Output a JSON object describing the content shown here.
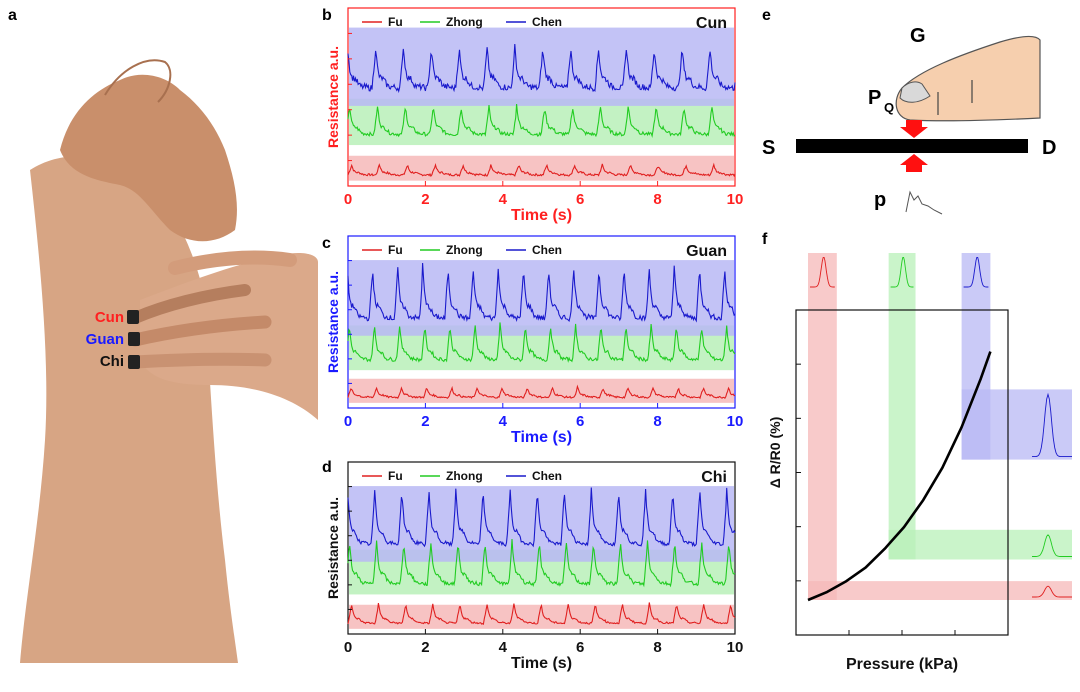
{
  "panel_letters": {
    "a": "a",
    "b": "b",
    "c": "c",
    "d": "d",
    "e": "e",
    "f": "f"
  },
  "panel_a": {
    "labels": [
      {
        "text": "Cun",
        "color": "#ff2020"
      },
      {
        "text": "Guan",
        "color": "#1a1aff"
      },
      {
        "text": "Chi",
        "color": "#111111"
      }
    ]
  },
  "colors": {
    "fu": "#e02020",
    "zhong": "#22cc22",
    "chen": "#1a1acc",
    "fu_band": "#f6b8b8",
    "zhong_band": "#b8f0b8",
    "chen_band": "#b8b8f4",
    "cun_axis": "#ff2020",
    "guan_axis": "#1a1aff",
    "chi_axis": "#111111"
  },
  "chart_data": [
    {
      "panel": "b",
      "type": "line",
      "title": "Cun",
      "xlabel": "Time (s)",
      "ylabel": "Resistance a.u.",
      "xlim": [
        0,
        10
      ],
      "x_ticks": [
        "0",
        "2",
        "4",
        "6",
        "8",
        "10"
      ],
      "axis_color": "#ff2020",
      "legend": [
        "Fu",
        "Zhong",
        "Chen"
      ],
      "legend_position": "top",
      "series": [
        {
          "name": "Fu",
          "period_s": 0.72,
          "baseline": 0.1,
          "amplitude": 0.05,
          "noise": 0.012
        },
        {
          "name": "Zhong",
          "period_s": 0.72,
          "baseline": 0.36,
          "amplitude": 0.14,
          "noise": 0.02
        },
        {
          "name": "Chen",
          "period_s": 0.72,
          "baseline": 0.67,
          "amplitude": 0.2,
          "noise": 0.035
        }
      ]
    },
    {
      "panel": "c",
      "type": "line",
      "title": "Guan",
      "xlabel": "Time (s)",
      "ylabel": "Resistance a.u.",
      "xlim": [
        0,
        10
      ],
      "x_ticks": [
        "0",
        "2",
        "4",
        "6",
        "8",
        "10"
      ],
      "axis_color": "#1a1aff",
      "legend": [
        "Fu",
        "Zhong",
        "Chen"
      ],
      "legend_position": "top",
      "series": [
        {
          "name": "Fu",
          "period_s": 0.65,
          "baseline": 0.1,
          "amplitude": 0.05,
          "noise": 0.01
        },
        {
          "name": "Zhong",
          "period_s": 0.65,
          "baseline": 0.35,
          "amplitude": 0.18,
          "noise": 0.02
        },
        {
          "name": "Chen",
          "period_s": 0.65,
          "baseline": 0.64,
          "amplitude": 0.26,
          "noise": 0.03
        }
      ]
    },
    {
      "panel": "d",
      "type": "line",
      "title": "Chi",
      "xlabel": "Time (s)",
      "ylabel": "Resistance a.u.",
      "xlim": [
        0,
        10
      ],
      "x_ticks": [
        "0",
        "2",
        "4",
        "6",
        "8",
        "10"
      ],
      "axis_color": "#111111",
      "legend": [
        "Fu",
        "Zhong",
        "Chen"
      ],
      "legend_position": "top",
      "series": [
        {
          "name": "Fu",
          "period_s": 0.7,
          "baseline": 0.1,
          "amplitude": 0.1,
          "noise": 0.01
        },
        {
          "name": "Zhong",
          "period_s": 0.7,
          "baseline": 0.36,
          "amplitude": 0.22,
          "noise": 0.02
        },
        {
          "name": "Chen",
          "period_s": 0.7,
          "baseline": 0.64,
          "amplitude": 0.28,
          "noise": 0.02
        }
      ]
    },
    {
      "panel": "f",
      "type": "line",
      "xlabel": "Pressure (kPa)",
      "ylabel": "Δ R/R0 (%)",
      "xlim": [
        0,
        1
      ],
      "ylim": [
        0,
        1
      ],
      "series": [
        {
          "name": "",
          "x": [
            0,
            0.1,
            0.2,
            0.3,
            0.4,
            0.5,
            0.6,
            0.7,
            0.8,
            0.9,
            0.95
          ],
          "y": [
            0.0,
            0.03,
            0.07,
            0.12,
            0.19,
            0.27,
            0.37,
            0.49,
            0.64,
            0.82,
            0.92
          ]
        }
      ],
      "bands": [
        {
          "name": "Fu",
          "x_range": [
            0.0,
            0.15
          ],
          "y_range": [
            0.0,
            0.07
          ]
        },
        {
          "name": "Zhong",
          "x_range": [
            0.42,
            0.56
          ],
          "y_range": [
            0.15,
            0.26
          ]
        },
        {
          "name": "Chen",
          "x_range": [
            0.8,
            0.95
          ],
          "y_range": [
            0.52,
            0.78
          ]
        }
      ]
    }
  ],
  "panel_e": {
    "G": "G",
    "P": "P",
    "Q": "Q",
    "S": "S",
    "D": "D",
    "p": "p"
  }
}
